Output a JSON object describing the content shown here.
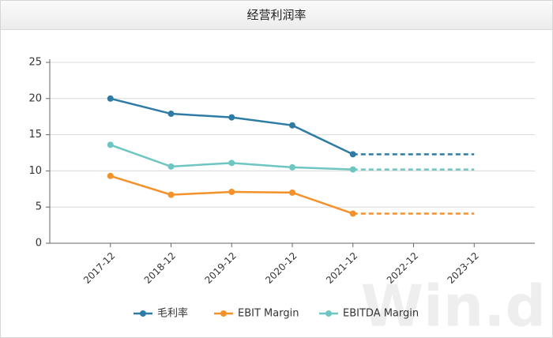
{
  "header": {
    "title": "经营利润率"
  },
  "watermark": "Win.d",
  "chart_data": {
    "type": "line",
    "categories": [
      "2017-12",
      "2018-12",
      "2019-12",
      "2020-12",
      "2021-12",
      "2022-12",
      "2023-12"
    ],
    "forecast_start": "2021-12",
    "series": [
      {
        "name": "毛利率",
        "color": "#2e7ca6",
        "values": [
          20.0,
          17.9,
          17.4,
          16.3,
          12.3,
          12.3,
          12.3
        ]
      },
      {
        "name": "EBIT Margin",
        "color": "#f5912a",
        "values": [
          9.3,
          6.7,
          7.1,
          7.0,
          4.1,
          4.1,
          4.1
        ]
      },
      {
        "name": "EBITDA Margin",
        "color": "#6dc6c1",
        "values": [
          13.6,
          10.6,
          11.1,
          10.5,
          10.2,
          10.2,
          10.2
        ]
      }
    ],
    "ylim": [
      0,
      25
    ],
    "yticks": [
      0,
      5,
      10,
      15,
      20,
      25
    ],
    "grid": true,
    "legend": "bottom"
  }
}
